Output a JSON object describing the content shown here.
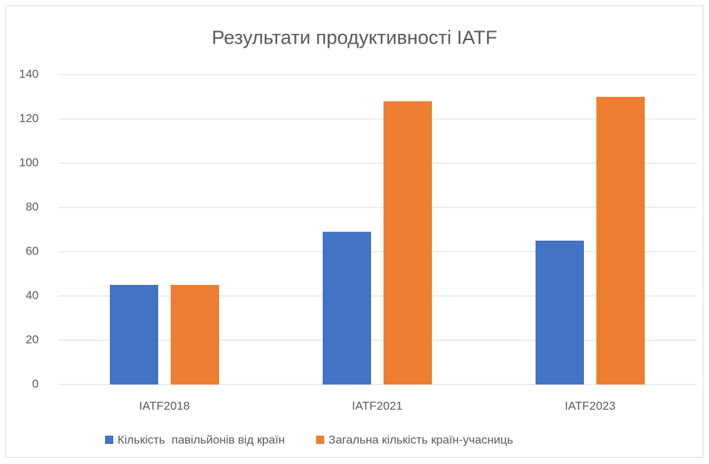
{
  "chart_data": {
    "type": "bar",
    "title": "Результати продуктивності IATF",
    "categories": [
      "IATF2018",
      "IATF2021",
      "IATF2023"
    ],
    "series": [
      {
        "name": "Кількість  павільйонів від країн",
        "color": "#4472c4",
        "values": [
          45,
          69,
          65
        ]
      },
      {
        "name": "Загальна кількість країн-учасниць",
        "color": "#ed7d31",
        "values": [
          45,
          128,
          130
        ]
      }
    ],
    "ylim": [
      0,
      140
    ],
    "yticks": [
      0,
      20,
      40,
      60,
      80,
      100,
      120,
      140
    ],
    "grid": true,
    "legend": "bottom"
  }
}
